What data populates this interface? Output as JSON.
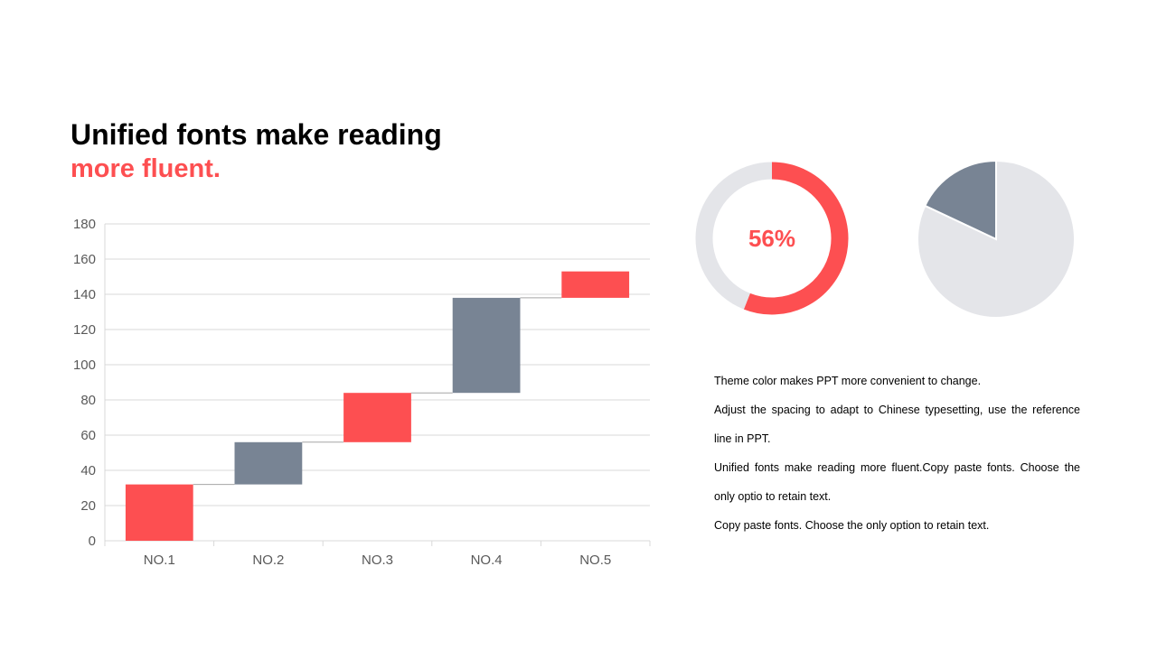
{
  "title": {
    "line1": "Unified fonts make reading",
    "line2": "more fluent."
  },
  "colors": {
    "accent": "#fd4f51",
    "secondary": "#788494",
    "light": "#e4e5e9",
    "grid": "#d9d9d9",
    "tick": "#595959"
  },
  "chart_data": [
    {
      "type": "bar",
      "subtype": "waterfall",
      "categories": [
        "NO.1",
        "NO.2",
        "NO.3",
        "NO.4",
        "NO.5"
      ],
      "bars": [
        {
          "base": 0,
          "top": 32,
          "color": "#fd4f51"
        },
        {
          "base": 32,
          "top": 56,
          "color": "#788494"
        },
        {
          "base": 56,
          "top": 84,
          "color": "#fd4f51"
        },
        {
          "base": 84,
          "top": 138,
          "color": "#788494"
        },
        {
          "base": 138,
          "top": 153,
          "color": "#fd4f51"
        }
      ],
      "ylim": [
        0,
        180
      ],
      "yticks": [
        0,
        20,
        40,
        60,
        80,
        100,
        120,
        140,
        160,
        180
      ],
      "grid": true
    },
    {
      "type": "pie",
      "subtype": "donut",
      "values": [
        56,
        44
      ],
      "colors": [
        "#fd4f51",
        "#e4e5e9"
      ],
      "label": "56%"
    },
    {
      "type": "pie",
      "values": [
        18,
        82
      ],
      "colors": [
        "#788494",
        "#e4e5e9"
      ]
    }
  ],
  "text_lines": [
    "Theme color makes PPT more convenient  to change.",
    "Adjust the spacing to adapt to Chinese  typesetting, use the reference line in PPT.",
    "Unified  fonts make reading more fluent.Copy paste fonts. Choose the only optio to retain text.",
    "Copy paste  fonts. Choose the only option to retain text."
  ]
}
